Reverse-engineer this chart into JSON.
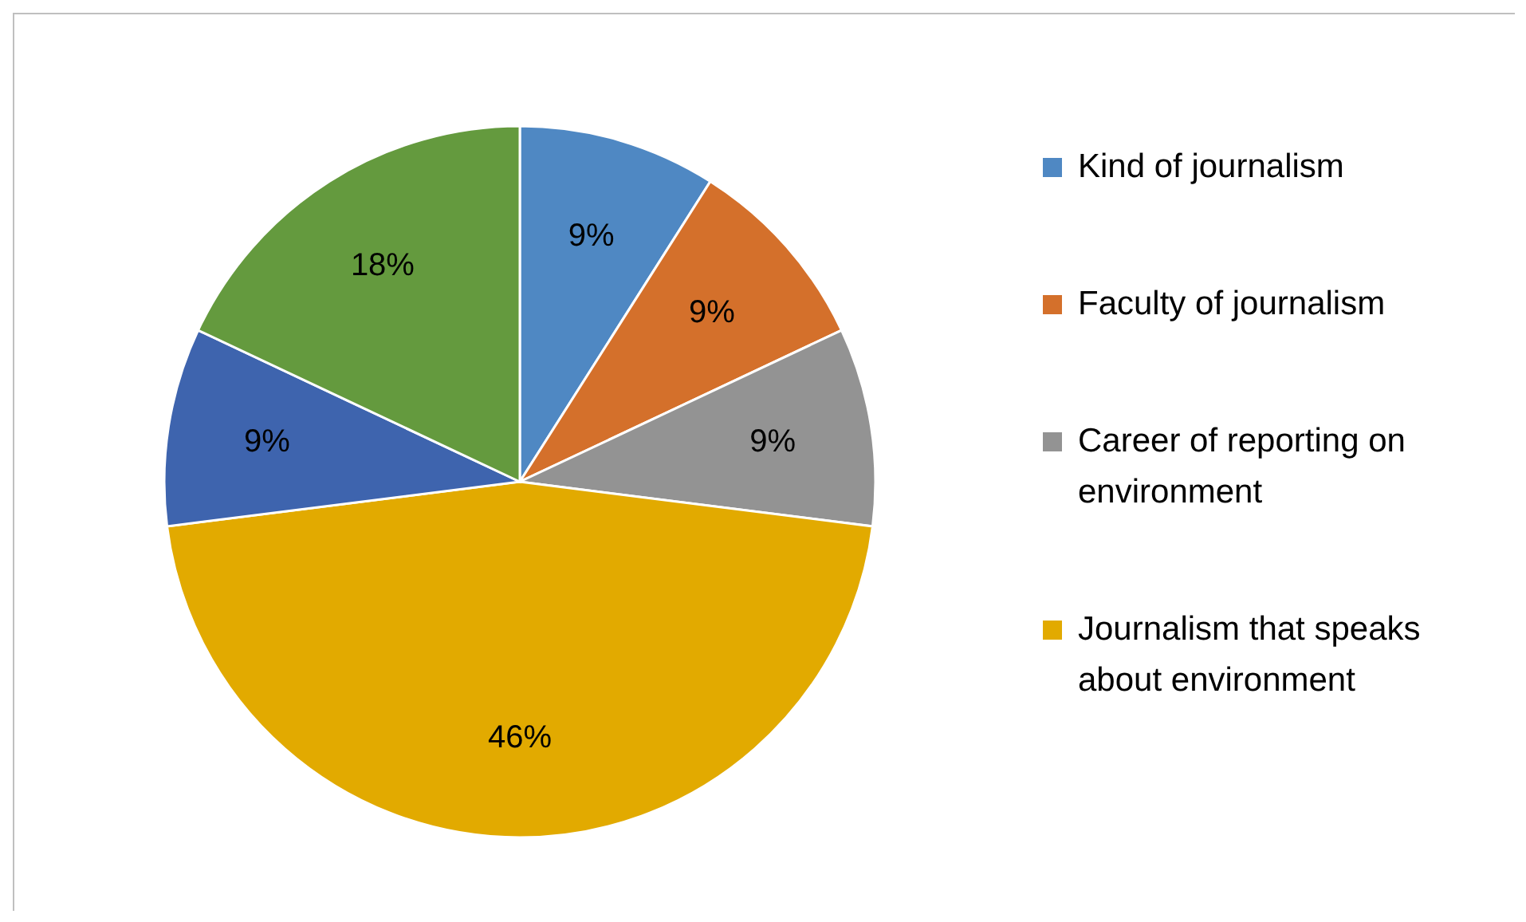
{
  "chart_data": {
    "type": "pie",
    "categories": [
      "Kind of journalism",
      "Faculty of journalism",
      "Career of reporting on environment",
      "Journalism that speaks about environment",
      null,
      null
    ],
    "values": [
      9,
      9,
      9,
      46,
      9,
      18
    ],
    "value_labels": [
      "9%",
      "9%",
      "9%",
      "46%",
      "9%",
      "18%"
    ],
    "colors": [
      "#4f88c3",
      "#d4702b",
      "#939393",
      "#e2aa00",
      "#3e64ae",
      "#649a3e"
    ],
    "legend": "right"
  }
}
